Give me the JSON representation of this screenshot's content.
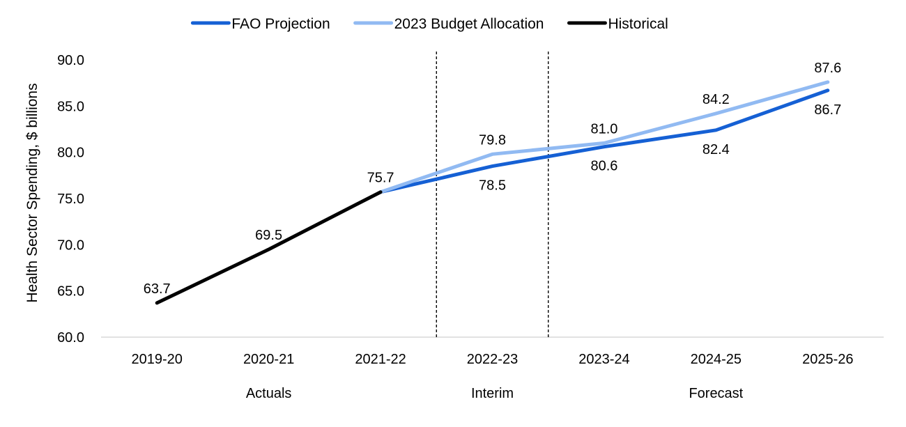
{
  "chart_data": {
    "type": "line",
    "categories": [
      "2019-20",
      "2020-21",
      "2021-22",
      "2022-23",
      "2023-24",
      "2024-25",
      "2025-26"
    ],
    "series": [
      {
        "name": "FAO Projection",
        "color": "#1560d4",
        "values": [
          null,
          null,
          75.7,
          78.5,
          80.6,
          82.4,
          86.7
        ]
      },
      {
        "name": "2023 Budget Allocation",
        "color": "#91baf2",
        "values": [
          null,
          null,
          75.7,
          79.8,
          81.0,
          84.2,
          87.6
        ]
      },
      {
        "name": "Historical",
        "color": "#000000",
        "values": [
          63.7,
          69.5,
          75.7,
          null,
          null,
          null,
          null
        ]
      }
    ],
    "data_labels": [
      {
        "category": "2019-20",
        "series": "Historical",
        "text": "63.7"
      },
      {
        "category": "2020-21",
        "series": "Historical",
        "text": "69.5"
      },
      {
        "category": "2021-22",
        "series": "Historical",
        "text": "75.7"
      },
      {
        "category": "2022-23",
        "series": "2023 Budget Allocation",
        "text": "79.8"
      },
      {
        "category": "2022-23",
        "series": "FAO Projection",
        "text": "78.5"
      },
      {
        "category": "2023-24",
        "series": "2023 Budget Allocation",
        "text": "81.0"
      },
      {
        "category": "2023-24",
        "series": "FAO Projection",
        "text": "80.6"
      },
      {
        "category": "2024-25",
        "series": "2023 Budget Allocation",
        "text": "84.2"
      },
      {
        "category": "2024-25",
        "series": "FAO Projection",
        "text": "82.4"
      },
      {
        "category": "2025-26",
        "series": "2023 Budget Allocation",
        "text": "87.6"
      },
      {
        "category": "2025-26",
        "series": "FAO Projection",
        "text": "86.7"
      }
    ],
    "ylabel": "Health Sector Spending, $ billions",
    "ylim": [
      60,
      90
    ],
    "yticks": [
      "60.0",
      "65.0",
      "70.0",
      "75.0",
      "80.0",
      "85.0",
      "90.0"
    ],
    "gridlines": false,
    "legend_position": "top-center",
    "period_groups": [
      {
        "label": "Actuals",
        "categories": [
          "2019-20",
          "2020-21",
          "2021-22"
        ]
      },
      {
        "label": "Interim",
        "categories": [
          "2022-23"
        ]
      },
      {
        "label": "Forecast",
        "categories": [
          "2023-24",
          "2024-25",
          "2025-26"
        ]
      }
    ]
  }
}
